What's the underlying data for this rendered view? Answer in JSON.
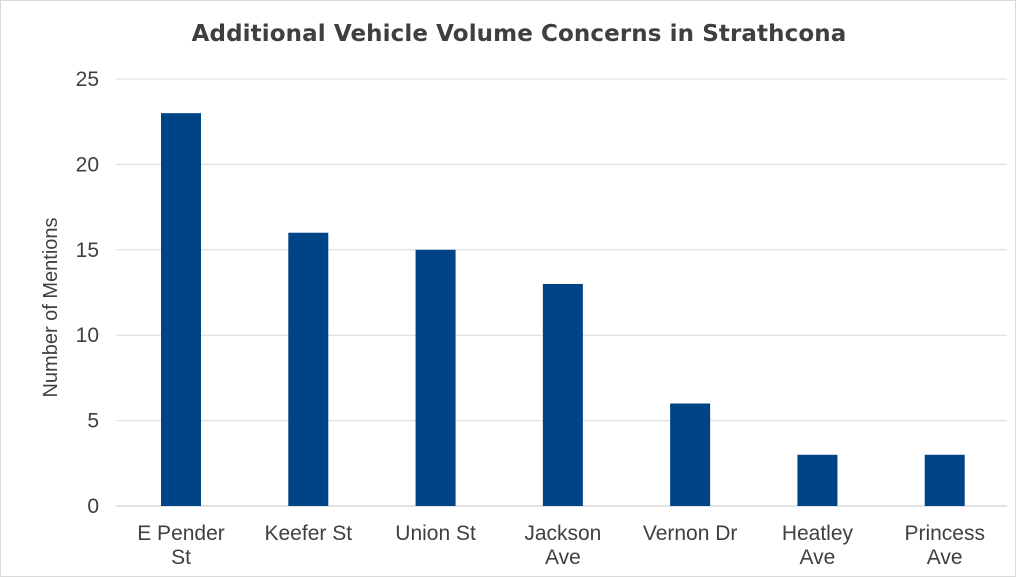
{
  "chart_data": {
    "type": "bar",
    "title": "Additional Vehicle Volume Concerns in Strathcona",
    "xlabel": "",
    "ylabel": "Number of Mentions",
    "categories": [
      [
        "E Pender",
        "St"
      ],
      [
        "Keefer St"
      ],
      [
        "Union St"
      ],
      [
        "Jackson",
        "Ave"
      ],
      [
        "Vernon Dr"
      ],
      [
        "Heatley",
        "Ave"
      ],
      [
        "Princess",
        "Ave"
      ]
    ],
    "values": [
      23,
      16,
      15,
      13,
      6,
      3,
      3
    ],
    "ylim": [
      0,
      25
    ],
    "yticks": [
      "0",
      "5",
      "10",
      "15",
      "20",
      "25"
    ],
    "grid": true,
    "legend": "none",
    "bar_color": "#004488",
    "grid_color": "#d9d9d9",
    "text_color": "#404040"
  }
}
